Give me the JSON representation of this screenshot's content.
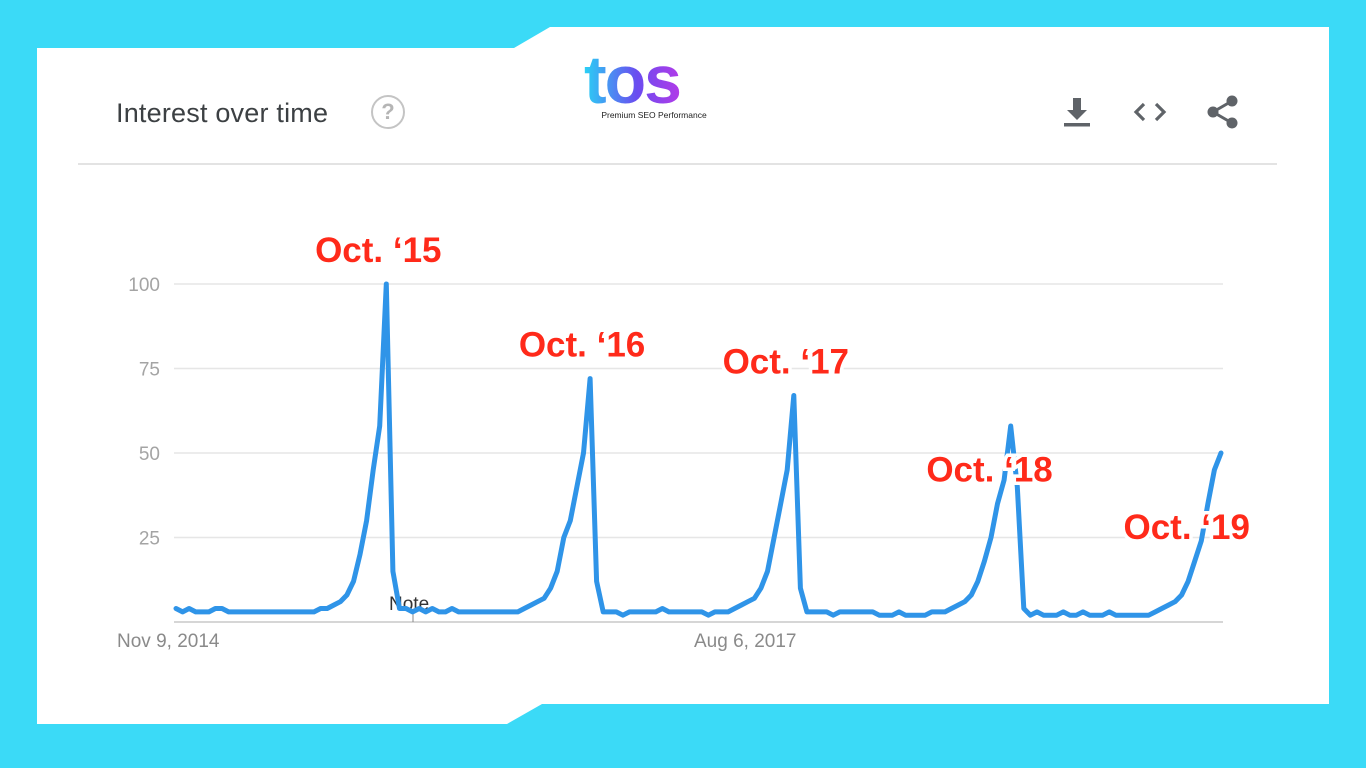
{
  "logo": {
    "text": "tos",
    "tagline": "Premium SEO Performance"
  },
  "panel": {
    "title": "Interest over time",
    "help_icon": "help-circle-icon",
    "help_glyph": "?",
    "toolbar": [
      "download-icon",
      "embed-code-icon",
      "share-icon"
    ]
  },
  "colors": {
    "background": "#3bdaf7",
    "line": "#2f94e8",
    "annotation": "#ff2a1a",
    "logo_gradient": [
      "#2ad1f5",
      "#6a4cf0",
      "#b23be8"
    ]
  },
  "chart_data": {
    "type": "line",
    "title": "",
    "xlabel": "",
    "ylabel": "",
    "ylim": [
      0,
      100
    ],
    "yticks": [
      "100",
      "75",
      "50",
      "25"
    ],
    "xtick_labels": [
      "Nov 9, 2014",
      "Aug 6, 2017"
    ],
    "grid": true,
    "legend": "none",
    "note_label": "Note",
    "series": [
      {
        "values": [
          4,
          3,
          4,
          3,
          3,
          3,
          4,
          4,
          3,
          3,
          3,
          3,
          3,
          3,
          3,
          3,
          3,
          3,
          3,
          3,
          3,
          3,
          4,
          4,
          5,
          6,
          8,
          12,
          20,
          30,
          45,
          58,
          100,
          15,
          4,
          4,
          3,
          4,
          3,
          4,
          3,
          3,
          4,
          3,
          3,
          3,
          3,
          3,
          3,
          3,
          3,
          3,
          3,
          4,
          5,
          6,
          7,
          10,
          15,
          25,
          30,
          40,
          50,
          72,
          12,
          3,
          3,
          3,
          2,
          3,
          3,
          3,
          3,
          3,
          4,
          3,
          3,
          3,
          3,
          3,
          3,
          2,
          3,
          3,
          3,
          4,
          5,
          6,
          7,
          10,
          15,
          25,
          35,
          45,
          67,
          10,
          3,
          3,
          3,
          3,
          2,
          3,
          3,
          3,
          3,
          3,
          3,
          2,
          2,
          2,
          3,
          2,
          2,
          2,
          2,
          3,
          3,
          3,
          4,
          5,
          6,
          8,
          12,
          18,
          25,
          35,
          42,
          58,
          40,
          4,
          2,
          3,
          2,
          2,
          2,
          3,
          2,
          2,
          3,
          2,
          2,
          2,
          3,
          2,
          2,
          2,
          2,
          2,
          2,
          3,
          4,
          5,
          6,
          8,
          12,
          18,
          24,
          35,
          45,
          50
        ]
      }
    ],
    "annotations": [
      {
        "text": "Oct. ‘15",
        "index": 32
      },
      {
        "text": "Oct. ‘16",
        "index": 63
      },
      {
        "text": "Oct. ‘17",
        "index": 94
      },
      {
        "text": "Oct. ‘18",
        "index": 125
      },
      {
        "text": "Oct. ‘19",
        "index": 155
      }
    ]
  }
}
